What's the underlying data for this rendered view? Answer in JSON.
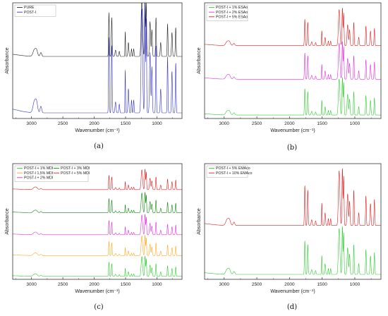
{
  "figure": {
    "title": "",
    "colors": {
      "black": "#222222",
      "blue": "#3333cc",
      "green": "#33cc33",
      "magenta": "#dd33dd",
      "red": "#dd2222",
      "orange": "#ffaa22",
      "darkgreen": "#118811",
      "darkred": "#992222"
    }
  },
  "chart_data": [
    {
      "type": "line",
      "panel_label": "(a)",
      "xlabel": "Wavenumber (cm⁻¹)",
      "ylabel": "Absorbance",
      "xlim": [
        3300,
        600
      ],
      "xticks": [
        3000,
        2500,
        2000,
        1500,
        1000
      ],
      "x_reversed": true,
      "legend_position": "top-left",
      "grid": false,
      "series": [
        {
          "name": "PURE",
          "color": "#222222",
          "scale": 0.55,
          "offset": 0.52
        },
        {
          "name": "POST-I",
          "color": "#3333cc",
          "scale": 0.95,
          "offset": 0.02
        }
      ]
    },
    {
      "type": "line",
      "panel_label": "(b)",
      "xlabel": "Wavenumber (cm⁻¹)",
      "ylabel": "Absorbance",
      "xlim": [
        3300,
        600
      ],
      "xticks": [
        3000,
        2500,
        2000,
        1500,
        1000
      ],
      "x_reversed": true,
      "legend_position": "top-left",
      "grid": false,
      "series": [
        {
          "name": "POST-I + 1% ESAo",
          "color": "#33cc33",
          "scale": 0.33,
          "offset": 0.02
        },
        {
          "name": "POST-I + 2% ESAo",
          "color": "#dd33dd",
          "scale": 0.33,
          "offset": 0.33
        },
        {
          "name": "POST-I + 5% ESAo",
          "color": "#dd2222",
          "scale": 0.33,
          "offset": 0.62
        }
      ]
    },
    {
      "type": "line",
      "panel_label": "(c)",
      "xlabel": "Wavenumber (cm⁻¹)",
      "ylabel": "Absorbance",
      "xlim": [
        3300,
        600
      ],
      "xticks": [
        3000,
        2500,
        2000,
        1500,
        1000
      ],
      "x_reversed": true,
      "legend_position": "top-left",
      "grid": false,
      "series": [
        {
          "name": "POST-I + 1% MDI",
          "color": "#33cc33",
          "scale": 0.18,
          "offset": 0.02
        },
        {
          "name": "POST-I 1,5% MDI",
          "color": "#ffaa22",
          "scale": 0.18,
          "offset": 0.2
        },
        {
          "name": "POST-I + 2% MDI",
          "color": "#dd33dd",
          "scale": 0.18,
          "offset": 0.38
        },
        {
          "name": "POST-I + 3% MDI",
          "color": "#118811",
          "scale": 0.18,
          "offset": 0.57
        },
        {
          "name": "POST-I + 5% MDI",
          "color": "#dd2222",
          "scale": 0.18,
          "offset": 0.77
        }
      ]
    },
    {
      "type": "line",
      "panel_label": "(d)",
      "xlabel": "Wavenumber (cm⁻¹)",
      "ylabel": "Absorbance",
      "xlim": [
        3300,
        600
      ],
      "xticks": [
        3000,
        2500,
        2000,
        1500,
        1000
      ],
      "x_reversed": true,
      "legend_position": "top-left",
      "grid": false,
      "series": [
        {
          "name": "POST-I + 5% EMAco",
          "color": "#33cc33",
          "scale": 0.42,
          "offset": 0.03
        },
        {
          "name": "POST-I + 10% EMAco",
          "color": "#dd2222",
          "scale": 0.5,
          "offset": 0.45
        }
      ]
    }
  ]
}
